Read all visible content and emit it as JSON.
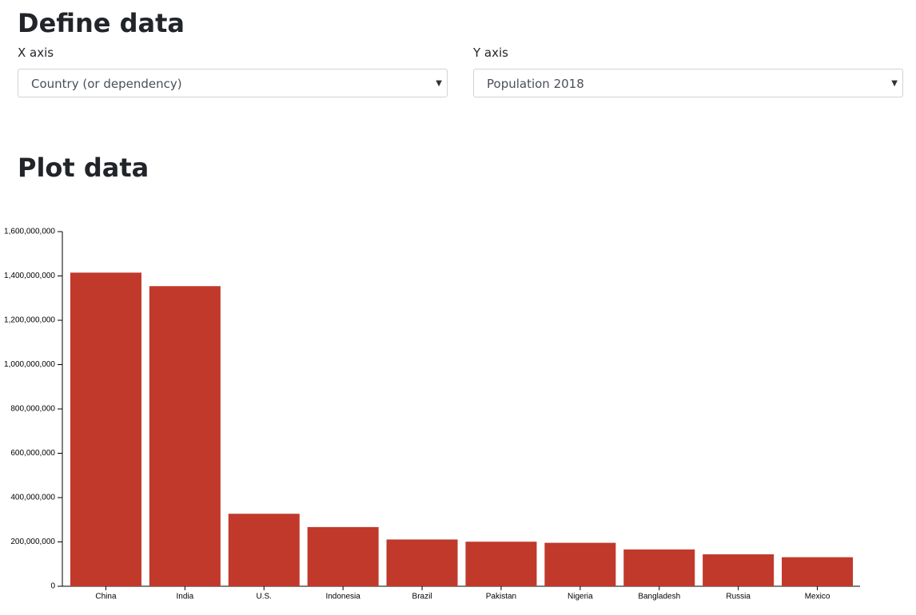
{
  "define_heading": "Define data",
  "x_field": {
    "label": "X axis",
    "value": "Country (or dependency)"
  },
  "y_field": {
    "label": "Y axis",
    "value": "Population 2018"
  },
  "plot_heading": "Plot data",
  "chart_data": {
    "type": "bar",
    "categories": [
      "China",
      "India",
      "U.S.",
      "Indonesia",
      "Brazil",
      "Pakistan",
      "Nigeria",
      "Bangladesh",
      "Russia",
      "Mexico"
    ],
    "values": [
      1415000000,
      1354000000,
      327000000,
      267000000,
      211000000,
      201000000,
      196000000,
      166000000,
      144000000,
      131000000
    ],
    "color": "#c0392b",
    "ylim": [
      0,
      1600000000
    ],
    "yticks": [
      0,
      {
        "value": 200000000,
        "label": "200,000,000"
      },
      {
        "value": 400000000,
        "label": "400,000,000"
      },
      {
        "value": 600000000,
        "label": "600,000,000"
      },
      {
        "value": 800000000,
        "label": "800,000,000"
      },
      {
        "value": 1000000000,
        "label": "1,000,000,000"
      },
      {
        "value": 1200000000,
        "label": "1,200,000,000"
      },
      {
        "value": 1400000000,
        "label": "1,400,000,000"
      },
      {
        "value": 1600000000,
        "label": "1,600,000,000"
      }
    ]
  }
}
